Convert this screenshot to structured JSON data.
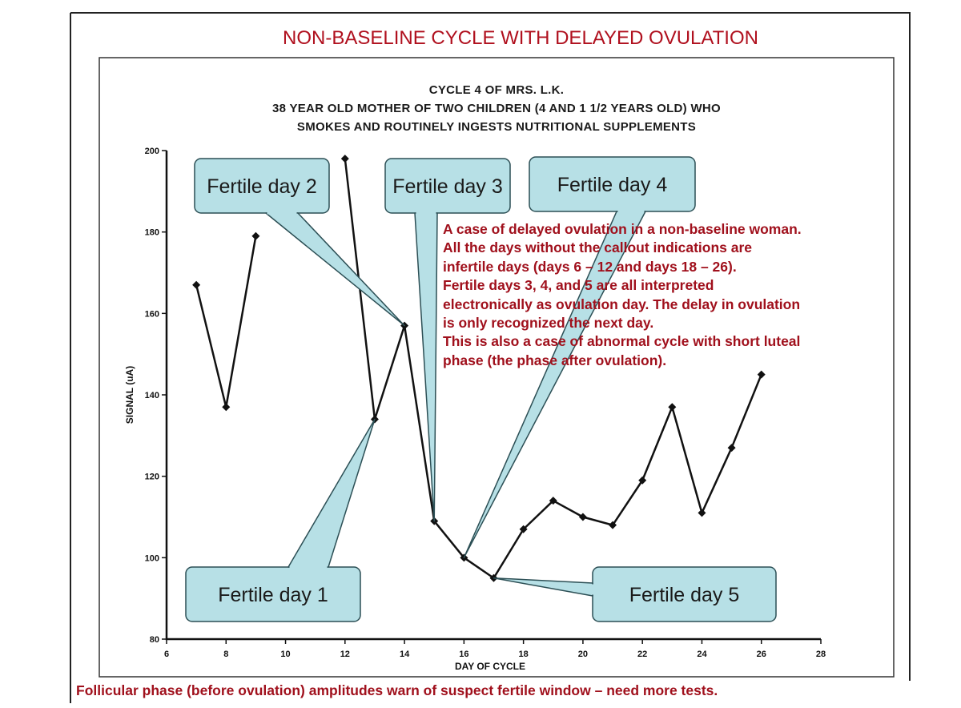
{
  "page": {
    "title": "NON-BASELINE CYCLE WITH DELAYED OVULATION",
    "footer": "Follicular phase (before ovulation) amplitudes warn of suspect fertile window – need more tests."
  },
  "chart_data": {
    "type": "line",
    "title_lines": [
      "CYCLE 4 OF MRS. L.K.",
      "38 YEAR OLD MOTHER OF TWO CHILDREN (4 AND 1 1/2 YEARS OLD) WHO",
      "SMOKES AND ROUTINELY INGESTS NUTRITIONAL SUPPLEMENTS"
    ],
    "xlabel": "DAY OF CYCLE",
    "ylabel": "SIGNAL (uA)",
    "xlim": [
      6,
      28
    ],
    "ylim": [
      80,
      200
    ],
    "xticks": [
      6,
      8,
      10,
      12,
      14,
      16,
      18,
      20,
      22,
      24,
      26,
      28
    ],
    "yticks": [
      80,
      100,
      120,
      140,
      160,
      180,
      200
    ],
    "segments": [
      {
        "x": [
          7,
          8,
          9
        ],
        "y": [
          167,
          137,
          179
        ]
      },
      {
        "x": [
          12,
          13,
          14,
          15,
          16,
          17,
          18,
          19,
          20,
          21,
          22,
          23,
          24,
          25,
          26
        ],
        "y": [
          198,
          134,
          157,
          109,
          100,
          95,
          107,
          114,
          110,
          108,
          119,
          137,
          111,
          127,
          145
        ]
      }
    ],
    "callouts": [
      {
        "label": "Fertile day 1",
        "day": 13,
        "value": 134
      },
      {
        "label": "Fertile day 2",
        "day": 14,
        "value": 157
      },
      {
        "label": "Fertile day 3",
        "day": 15,
        "value": 109
      },
      {
        "label": "Fertile day 4",
        "day": 16,
        "value": 100
      },
      {
        "label": "Fertile day 5",
        "day": 17,
        "value": 95
      }
    ]
  },
  "annotation": {
    "lines": [
      "A case of delayed ovulation in a non-baseline woman.",
      "All the days without the callout indications are",
      "infertile days (days 6 – 12 and days 18 – 26).",
      "Fertile days 3, 4, and 5 are all interpreted",
      "electronically as ovulation day. The delay in ovulation",
      "is only recognized the next day.",
      "This is also a case of abnormal cycle with short luteal",
      "phase (the phase after ovulation)."
    ]
  },
  "colors": {
    "title": "#b0101e",
    "annotation": "#a0101c",
    "callout_fill": "#b7e0e6",
    "callout_stroke": "#2c4f55",
    "line": "#111111"
  }
}
